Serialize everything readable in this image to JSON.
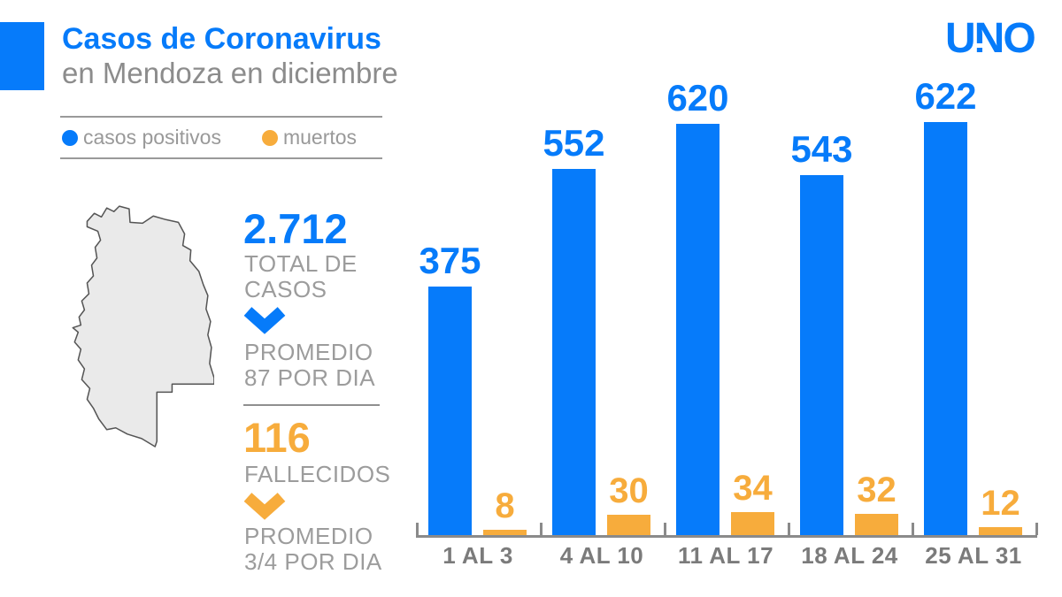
{
  "header": {
    "title": "Casos de Coronavirus",
    "subtitle": "en Mendoza en diciembre",
    "logo": "UNO"
  },
  "legend": {
    "positives_label": "casos positivos",
    "deaths_label": "muertos"
  },
  "stats": {
    "total": {
      "value": "2.712",
      "label": "TOTAL DE\nCASOS",
      "average": "PROMEDIO\n87 POR DIA"
    },
    "deaths": {
      "value": "116",
      "label": "FALLECIDOS",
      "average": "PROMEDIO\n3/4 POR DIA"
    }
  },
  "colors": {
    "blue": "#067BFA",
    "orange": "#F7AC3C",
    "subtitle_gray": "#8C8C8C",
    "label_gray": "#9C9C9C",
    "axis_gray": "#8A8A8A",
    "map_fill": "#EAEAEA",
    "map_stroke": "#555555"
  },
  "chart_data": {
    "type": "bar",
    "title": "Casos de Coronavirus en Mendoza en diciembre",
    "categories": [
      "1 AL 3",
      "4 AL 10",
      "11 AL 17",
      "18 AL 24",
      "25 AL 31"
    ],
    "series": [
      {
        "name": "casos positivos",
        "color": "#067BFA",
        "values": [
          375,
          552,
          620,
          543,
          622
        ]
      },
      {
        "name": "muertos",
        "color": "#F7AC3C",
        "values": [
          8,
          30,
          34,
          32,
          12
        ]
      }
    ],
    "xlabel": "",
    "ylabel": "",
    "ylim": [
      0,
      620
    ],
    "grid": false,
    "legend_position": "top-left",
    "value_labels": true
  }
}
